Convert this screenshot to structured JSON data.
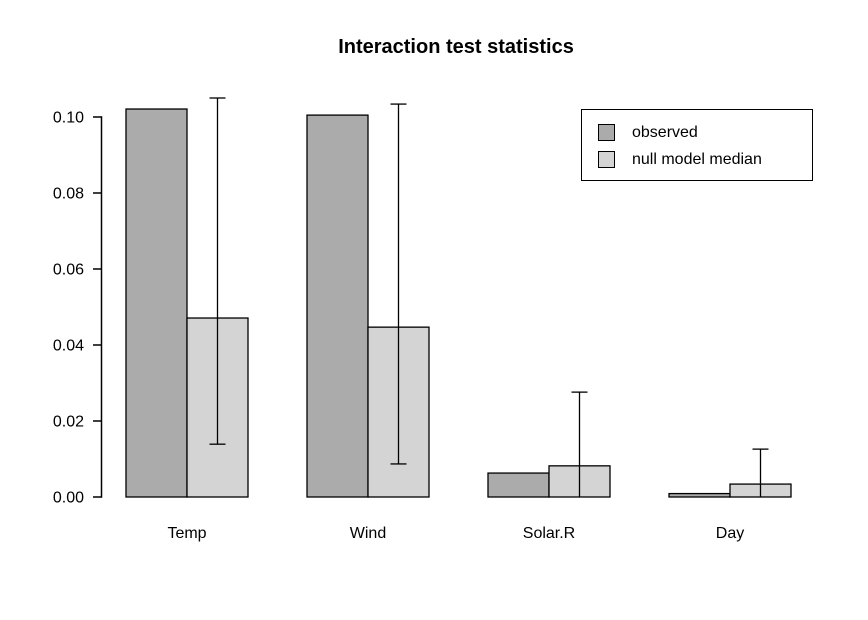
{
  "chart_data": {
    "type": "bar",
    "title": "Interaction test statistics",
    "categories": [
      "Temp",
      "Wind",
      "Solar.R",
      "Day"
    ],
    "series": [
      {
        "name": "observed",
        "color": "#ababab",
        "values": [
          0.1021,
          0.1005,
          0.0063,
          0.0009
        ]
      },
      {
        "name": "null model median",
        "color": "#d4d4d4",
        "values": [
          0.0471,
          0.0447,
          0.0082,
          0.0034
        ]
      }
    ],
    "error_bars": {
      "attached_to": "null model median",
      "high": [
        0.105,
        0.1034,
        0.0276,
        0.0126
      ],
      "low": [
        0.0139,
        0.0087,
        0.0,
        0.0
      ],
      "bottom_cap_visible": [
        true,
        true,
        false,
        false
      ]
    },
    "y_axis": {
      "tick_values": [
        0.0,
        0.02,
        0.04,
        0.06,
        0.08,
        0.1
      ],
      "tick_labels": [
        "0.00",
        "0.02",
        "0.04",
        "0.06",
        "0.08",
        "0.10"
      ],
      "range": [
        0.0,
        0.107
      ]
    },
    "legend": {
      "position": "top-right",
      "entries": [
        "observed",
        "null model median"
      ]
    },
    "grid": false,
    "background": "#ffffff",
    "bar_border_color": "#000000"
  }
}
